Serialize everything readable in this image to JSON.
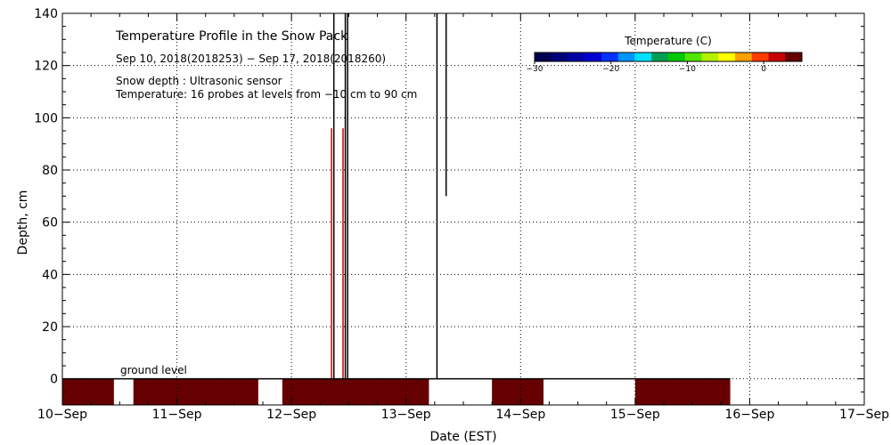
{
  "chart_data": {
    "type": "heatmap",
    "title": "Temperature Profile in the Snow Pack",
    "subtitle": "Sep 10, 2018(2018253) − Sep 17, 2018(2018260)",
    "notes": [
      "Snow depth : Ultrasonic sensor",
      "Temperature: 16 probes at levels from −10 cm to 90 cm"
    ],
    "xlabel": "Date (EST)",
    "ylabel": "Depth, cm",
    "xlim": [
      0,
      7
    ],
    "ylim": [
      -10,
      140
    ],
    "x_ticks": [
      {
        "value": 0,
        "label": "10−Sep"
      },
      {
        "value": 1,
        "label": "11−Sep"
      },
      {
        "value": 2,
        "label": "12−Sep"
      },
      {
        "value": 3,
        "label": "13−Sep"
      },
      {
        "value": 4,
        "label": "14−Sep"
      },
      {
        "value": 5,
        "label": "15−Sep"
      },
      {
        "value": 6,
        "label": "16−Sep"
      },
      {
        "value": 7,
        "label": "17−Sep"
      }
    ],
    "y_ticks": [
      {
        "value": 0,
        "label": "0"
      },
      {
        "value": 20,
        "label": "20"
      },
      {
        "value": 40,
        "label": "40"
      },
      {
        "value": 60,
        "label": "60"
      },
      {
        "value": 80,
        "label": "80"
      },
      {
        "value": 100,
        "label": "100"
      },
      {
        "value": 120,
        "label": "120"
      },
      {
        "value": 140,
        "label": "140"
      }
    ],
    "grid": true,
    "ground_level": {
      "value": 0,
      "label": "ground level"
    },
    "temperature_blocks": [
      {
        "x_start": 0.0,
        "x_end": 0.45,
        "y_start": -10,
        "y_end": 0,
        "color": "#660000"
      },
      {
        "x_start": 0.62,
        "x_end": 1.71,
        "y_start": -10,
        "y_end": 0,
        "color": "#660000"
      },
      {
        "x_start": 1.92,
        "x_end": 3.2,
        "y_start": -10,
        "y_end": 0,
        "color": "#660000"
      },
      {
        "x_start": 3.75,
        "x_end": 4.2,
        "y_start": -10,
        "y_end": 0,
        "color": "#660000"
      },
      {
        "x_start": 5.0,
        "x_end": 5.83,
        "y_start": -10,
        "y_end": 0,
        "color": "#660000"
      }
    ],
    "snow_depth_series": [
      {
        "x": [
          0.0,
          5.83
        ],
        "y": [
          0,
          0
        ]
      },
      {
        "x": [
          2.37,
          2.37
        ],
        "y": [
          0,
          140
        ]
      },
      {
        "x": [
          2.47,
          2.47
        ],
        "y": [
          0,
          140
        ]
      },
      {
        "x": [
          2.49,
          2.49
        ],
        "y": [
          0,
          140
        ]
      },
      {
        "x": [
          3.27,
          3.27
        ],
        "y": [
          0,
          140
        ]
      },
      {
        "x": [
          3.35,
          3.35
        ],
        "y": [
          70,
          140
        ]
      }
    ],
    "profile_marks": [
      {
        "x": 2.35,
        "y_top": 96,
        "y_bottom": 0,
        "color": "#cc0000"
      },
      {
        "x": 2.45,
        "y_top": 96,
        "y_bottom": 0,
        "color": "#cc0000"
      }
    ],
    "colorbar": {
      "title": "Temperature (C)",
      "range": [
        -30,
        5
      ],
      "ticks": [
        {
          "value": -30,
          "label": "−30"
        },
        {
          "value": -20,
          "label": "−20"
        },
        {
          "value": -10,
          "label": "−10"
        },
        {
          "value": 0,
          "label": "0"
        }
      ],
      "colors": [
        "#000050",
        "#00007a",
        "#0000a6",
        "#0000d2",
        "#0032ff",
        "#0096ff",
        "#00e0ff",
        "#00a050",
        "#00c800",
        "#50e600",
        "#b4f000",
        "#ffff00",
        "#ffa000",
        "#ff3c00",
        "#c80000",
        "#640000"
      ]
    },
    "colors": {
      "background": "#ffffff",
      "axis": "#000000",
      "grid": "#000000",
      "block": "#660000"
    }
  }
}
